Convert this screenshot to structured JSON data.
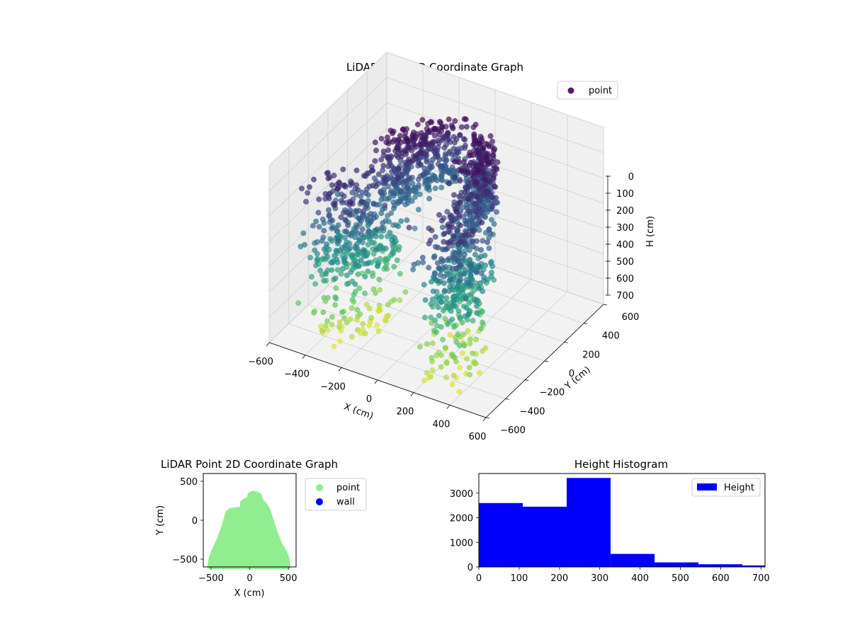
{
  "chart_data": [
    {
      "type": "scatter",
      "projection": "3d",
      "title": "LiDAR Point 3D Coordinate Graph",
      "xlabel": "X (cm)",
      "ylabel": "Y (cm)",
      "zlabel": "H (cm)",
      "xlim": [
        -600,
        600
      ],
      "ylim": [
        -600,
        600
      ],
      "zlim": [
        0,
        700
      ],
      "z_inverted": true,
      "x_ticks": [
        "−600",
        "−400",
        "−200",
        "0",
        "200",
        "400",
        "600"
      ],
      "y_ticks": [
        "−600",
        "−400",
        "−200",
        "0",
        "200",
        "400",
        "600"
      ],
      "z_ticks": [
        "0",
        "100",
        "200",
        "300",
        "400",
        "500",
        "600",
        "700"
      ],
      "colormap": "viridis",
      "grid": true,
      "legend": {
        "position": "top-right",
        "entries": [
          {
            "label": "point",
            "color": "#440154"
          }
        ]
      },
      "footprint_profile": [
        [
          -500,
          -540
        ],
        [
          -480,
          -300
        ],
        [
          -400,
          -150
        ],
        [
          -300,
          110
        ],
        [
          -100,
          140
        ],
        [
          -60,
          250
        ],
        [
          30,
          340
        ],
        [
          150,
          300
        ],
        [
          260,
          170
        ],
        [
          330,
          -100
        ],
        [
          440,
          -300
        ],
        [
          500,
          -540
        ]
      ],
      "shell_height_range": [
        0,
        700
      ]
    },
    {
      "type": "scatter",
      "title": "LiDAR Point 2D Coordinate Graph",
      "xlabel": "X (cm)",
      "ylabel": "Y (cm)",
      "xlim": [
        -600,
        600
      ],
      "ylim": [
        -600,
        600
      ],
      "x_ticks": [
        "−500",
        "0",
        "500"
      ],
      "y_ticks": [
        "−500",
        "0",
        "500"
      ],
      "legend": {
        "position": "outside-right",
        "entries": [
          {
            "label": "point",
            "color": "#90ee90"
          },
          {
            "label": "wall",
            "color": "#0000ff"
          }
        ]
      },
      "footprint_polygon": [
        [
          -520,
          -600
        ],
        [
          -500,
          -480
        ],
        [
          -460,
          -380
        ],
        [
          -400,
          -250
        ],
        [
          -330,
          -60
        ],
        [
          -290,
          90
        ],
        [
          -250,
          130
        ],
        [
          -150,
          140
        ],
        [
          -100,
          150
        ],
        [
          -95,
          230
        ],
        [
          -50,
          260
        ],
        [
          -10,
          270
        ],
        [
          0,
          330
        ],
        [
          40,
          350
        ],
        [
          90,
          340
        ],
        [
          130,
          320
        ],
        [
          150,
          250
        ],
        [
          200,
          200
        ],
        [
          240,
          130
        ],
        [
          290,
          -20
        ],
        [
          330,
          -150
        ],
        [
          390,
          -300
        ],
        [
          450,
          -400
        ],
        [
          490,
          -500
        ],
        [
          500,
          -600
        ]
      ]
    },
    {
      "type": "bar",
      "subtype": "histogram",
      "title": "Height Histogram",
      "xlabel": "",
      "ylabel": "",
      "xlim": [
        0,
        710
      ],
      "ylim": [
        0,
        3800
      ],
      "x_ticks": [
        0,
        100,
        200,
        300,
        400,
        500,
        600,
        700
      ],
      "y_ticks": [
        0,
        1000,
        2000,
        3000
      ],
      "bin_edges": [
        0,
        109,
        218,
        327,
        436,
        545,
        654,
        763
      ],
      "values": [
        2600,
        2450,
        3620,
        530,
        185,
        110,
        60
      ],
      "color": "#0000ff",
      "legend": {
        "position": "top-right",
        "entries": [
          {
            "label": "Height",
            "color": "#0000ff"
          }
        ]
      }
    }
  ]
}
